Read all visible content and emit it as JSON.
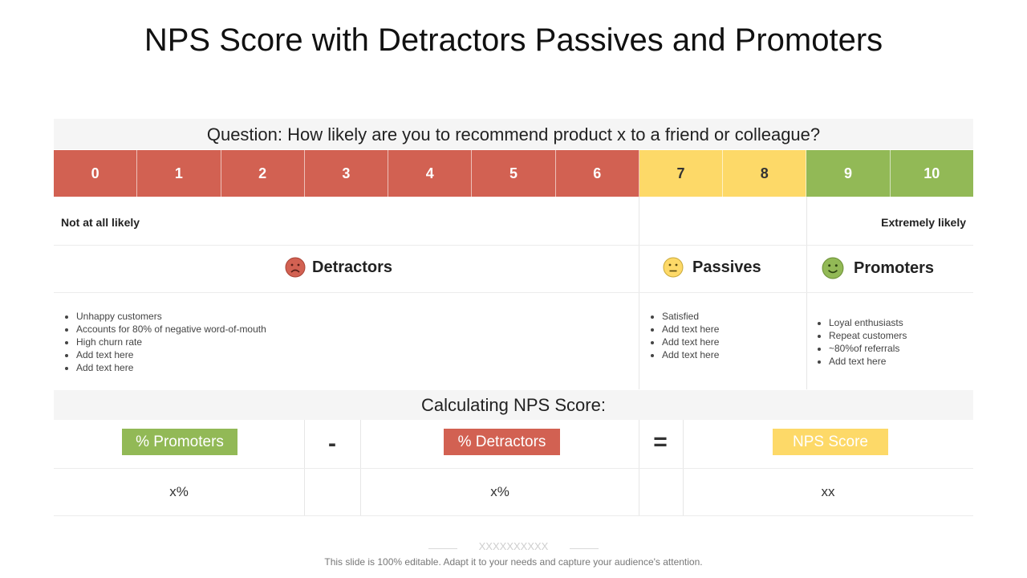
{
  "title": "NPS Score with Detractors Passives and Promoters",
  "question": "Question: How likely are you to recommend product x to a friend or colleague?",
  "scale": [
    {
      "label": "0",
      "group": "red"
    },
    {
      "label": "1",
      "group": "red"
    },
    {
      "label": "2",
      "group": "red"
    },
    {
      "label": "3",
      "group": "red"
    },
    {
      "label": "4",
      "group": "red"
    },
    {
      "label": "5",
      "group": "red"
    },
    {
      "label": "6",
      "group": "red"
    },
    {
      "label": "7",
      "group": "yellow"
    },
    {
      "label": "8",
      "group": "yellow"
    },
    {
      "label": "9",
      "group": "green"
    },
    {
      "label": "10",
      "group": "green"
    }
  ],
  "anchors": {
    "low": "Not at all likely",
    "high": "Extremely likely"
  },
  "categories": {
    "detractors": {
      "label": "Detractors",
      "icon": "sad-face-icon",
      "color": "#d26152",
      "items": [
        "Unhappy customers",
        "Accounts  for 80% of negative word-of-mouth",
        "High churn rate",
        "Add text here",
        "Add text here"
      ]
    },
    "passives": {
      "label": "Passives",
      "icon": "neutral-face-icon",
      "color": "#fdd968",
      "items": [
        "Satisfied",
        "Add text here",
        "Add text here",
        "Add text here"
      ]
    },
    "promoters": {
      "label": "Promoters",
      "icon": "smiley-face-icon",
      "color": "#92b956",
      "items": [
        "Loyal enthusiasts",
        "Repeat customers",
        "~80%of referrals",
        "Add text here"
      ]
    }
  },
  "calc": {
    "heading": "Calculating NPS Score:",
    "promoters_label": "% Promoters",
    "minus": "-",
    "detractors_label": "% Detractors",
    "equals": "=",
    "score_label": "NPS Score",
    "promoters_value": "x%",
    "detractors_value": "x%",
    "score_value": "xx"
  },
  "footer": {
    "marks": "XXXXXXXXXX",
    "note": "This slide is 100% editable. Adapt it to your needs and capture your audience's attention."
  }
}
